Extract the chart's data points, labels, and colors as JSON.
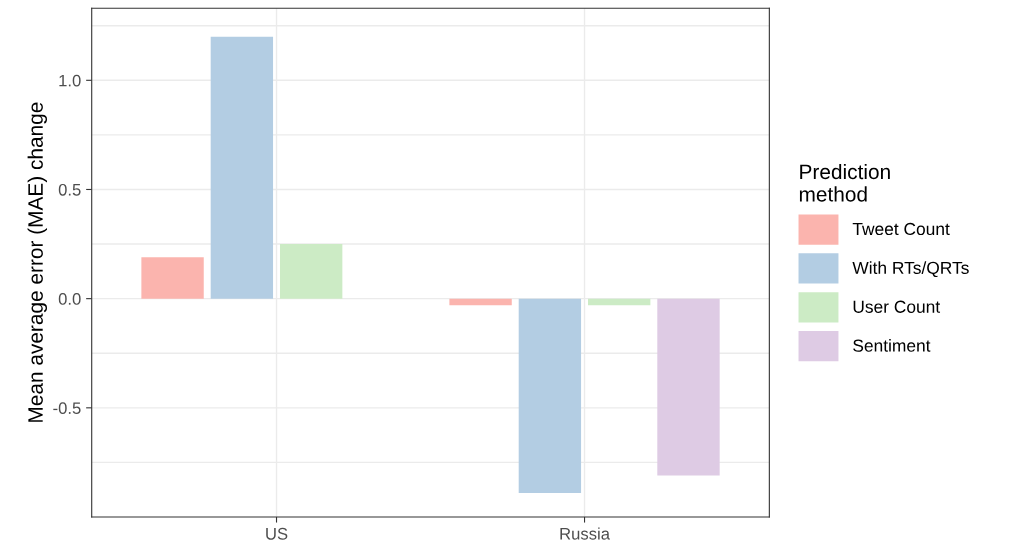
{
  "chart_data": {
    "type": "bar",
    "ylabel": "Mean average error (MAE) change",
    "legend_title": "Prediction\nmethod",
    "categories": [
      "US",
      "Russia"
    ],
    "series": [
      {
        "name": "Tweet Count",
        "color": "#fbb4ae",
        "values": [
          0.19,
          -0.03
        ]
      },
      {
        "name": "With RTs/QRTs",
        "color": "#b3cde3",
        "values": [
          1.2,
          -0.89
        ]
      },
      {
        "name": "User Count",
        "color": "#ccebc5",
        "values": [
          0.25,
          -0.03
        ]
      },
      {
        "name": "Sentiment",
        "color": "#decbe4",
        "values": [
          0.0,
          -0.81
        ]
      }
    ],
    "ylim": [
      -1.0,
      1.33
    ],
    "yticks": [
      {
        "value": -0.75,
        "label": null
      },
      {
        "value": -0.5,
        "label": "-0.5"
      },
      {
        "value": -0.25,
        "label": null
      },
      {
        "value": 0.0,
        "label": "0.0"
      },
      {
        "value": 0.25,
        "label": null
      },
      {
        "value": 0.5,
        "label": "0.5"
      },
      {
        "value": 0.75,
        "label": null
      },
      {
        "value": 1.0,
        "label": "1.0"
      },
      {
        "value": 1.25,
        "label": null
      }
    ],
    "grid": true,
    "legend": "right"
  }
}
